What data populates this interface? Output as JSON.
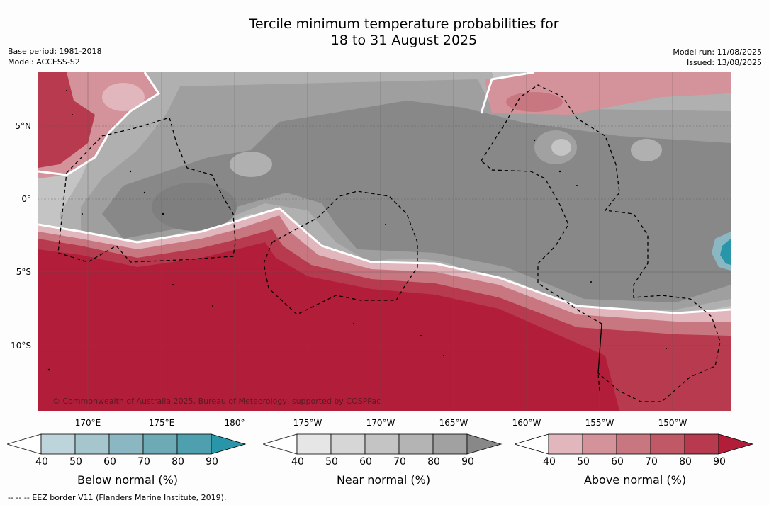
{
  "title_line1": "Tercile minimum temperature probabilities for",
  "title_line2": "18 to 31 August 2025",
  "base_period": "Base period: 1981-2018",
  "model": "Model: ACCESS-S2",
  "model_run": "Model run: 11/08/2025",
  "issued": "Issued: 13/08/2025",
  "lat_labels": [
    "5°N",
    "0°",
    "5°S",
    "10°S"
  ],
  "lon_labels": [
    "170°E",
    "175°E",
    "180°",
    "175°W",
    "170°W",
    "165°W",
    "160°W",
    "155°W",
    "150°W"
  ],
  "copyright": "© Commonwealth of Australia 2025, Bureau of Meteorology, supported by COSPPac",
  "colorbars": [
    {
      "label": "Below normal (%)",
      "ticks": [
        "40",
        "50",
        "60",
        "70",
        "80",
        "90"
      ],
      "colors": [
        "#ffffff",
        "#bdd4db",
        "#a5c6cd",
        "#8ab7c1",
        "#6eaab5",
        "#4fa0ae",
        "#2995a8"
      ]
    },
    {
      "label": "Near normal (%)",
      "ticks": [
        "40",
        "50",
        "60",
        "70",
        "80",
        "90"
      ],
      "colors": [
        "#ffffff",
        "#e6e6e6",
        "#d6d6d6",
        "#c4c4c4",
        "#b4b4b4",
        "#a1a1a1",
        "#888888"
      ]
    },
    {
      "label": "Above normal (%)",
      "ticks": [
        "40",
        "50",
        "60",
        "70",
        "80",
        "90"
      ],
      "colors": [
        "#ffffff",
        "#e1b6bd",
        "#d4929b",
        "#c87780",
        "#c05866",
        "#b83a4e",
        "#b21e3a"
      ]
    }
  ],
  "footnote": "-- -- -- EEZ border V11 (Flanders Marine Institute, 2019).",
  "colors": {
    "below_max": "#2995a8",
    "near_max": "#888888",
    "above_max": "#b21e3a",
    "eez_line": "#000000"
  }
}
